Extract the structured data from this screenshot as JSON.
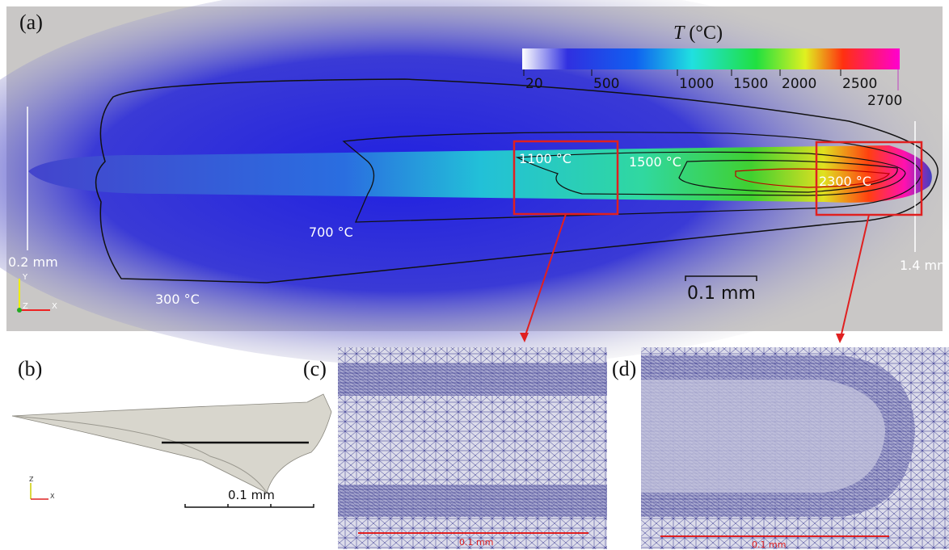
{
  "panels": {
    "a": "(a)",
    "b": "(b)",
    "c": "(c)",
    "d": "(d)"
  },
  "colorbar": {
    "symbol": "T",
    "unit": "(°C)",
    "ticks": [
      20,
      500,
      1000,
      1500,
      2000,
      2500,
      2700
    ]
  },
  "isotherms": [
    "300 °C",
    "700 °C",
    "1100 °C",
    "1500 °C",
    "2300 °C"
  ],
  "dimensions": {
    "width": "0.2 mm",
    "length": "1.4 mm"
  },
  "scale_bars": {
    "a": "0.1 mm",
    "b": "0.1 mm",
    "c": "0.1 mm",
    "d": "0.1 mm"
  },
  "axes_a": {
    "y": "Y",
    "z": "Z",
    "x": "X"
  },
  "axes_b": {
    "z": "Z",
    "x": "X"
  }
}
